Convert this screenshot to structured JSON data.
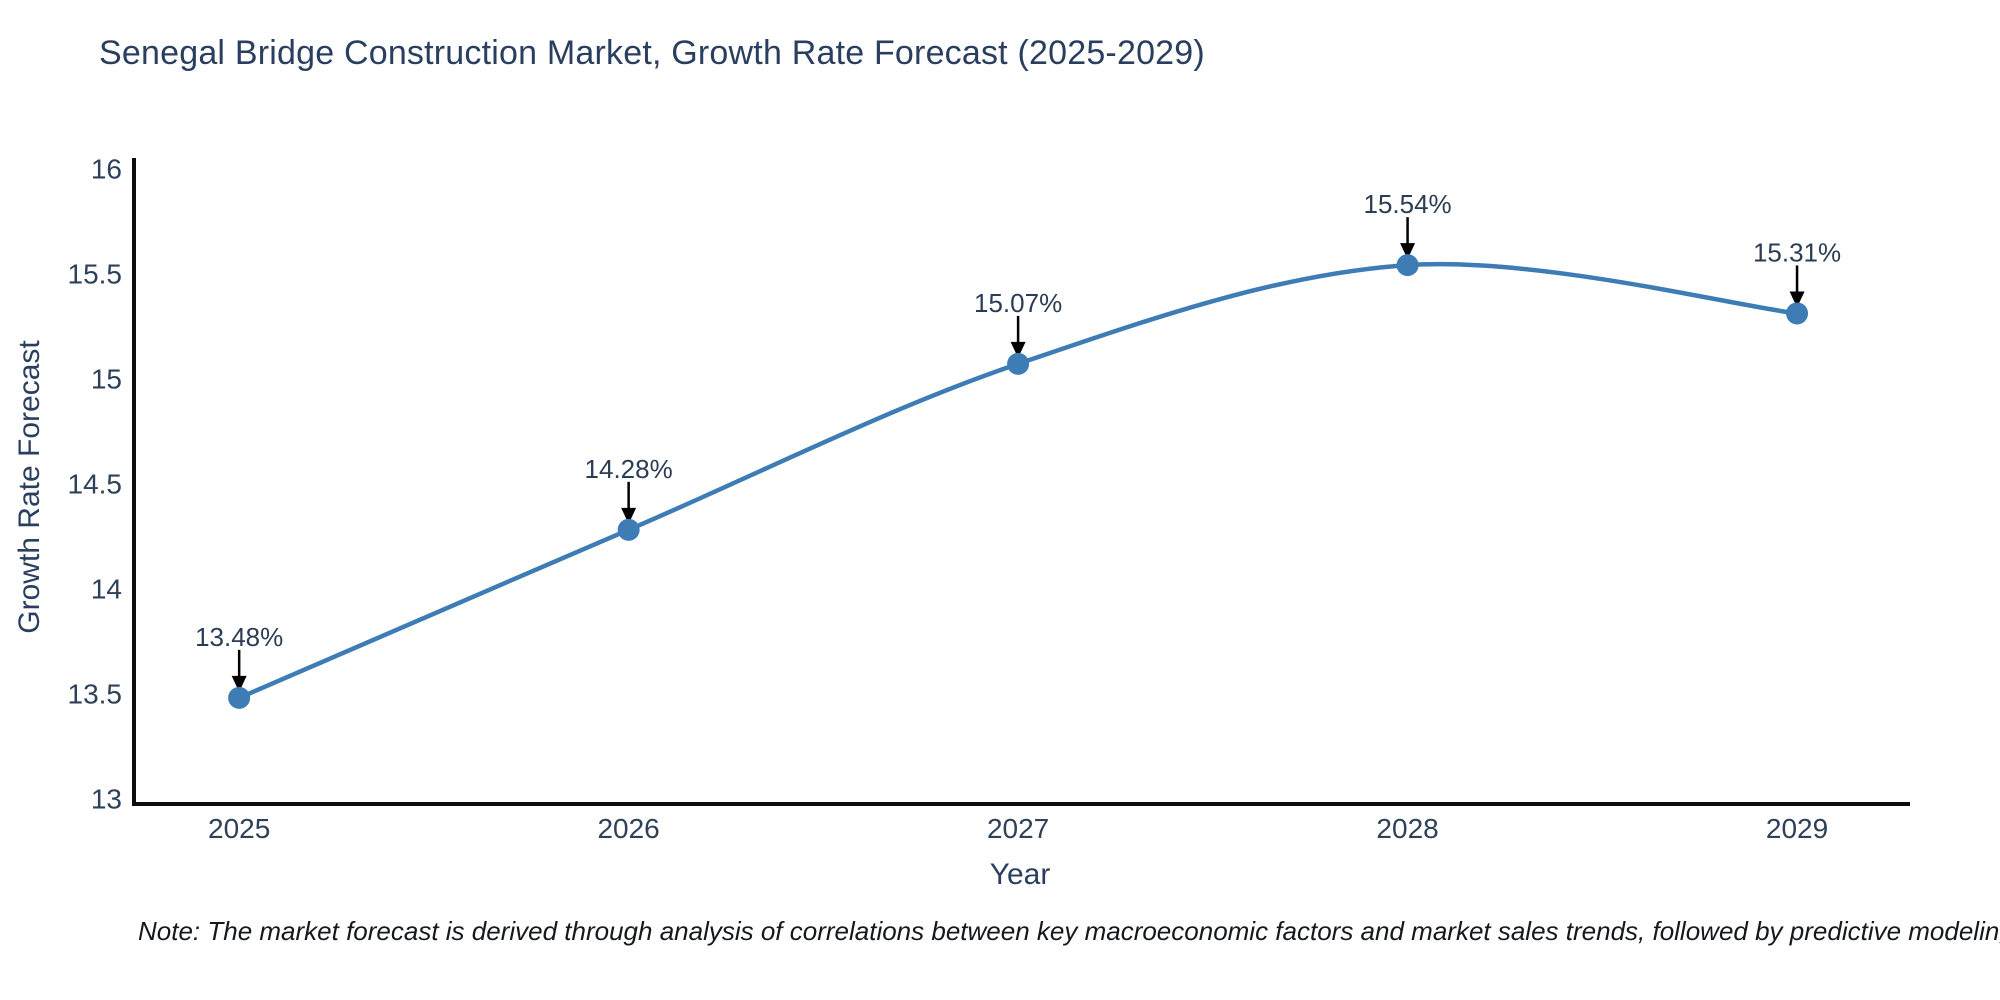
{
  "note": "Note: The market forecast is derived through analysis of correlations between key macroeconomic factors and market sales trends, followed by predictive modeling to project future sal",
  "chart_data": {
    "type": "line",
    "title": "Senegal Bridge Construction Market, Growth Rate Forecast (2025-2029)",
    "x": [
      2025,
      2026,
      2027,
      2028,
      2029
    ],
    "series": [
      {
        "name": "Growth Rate Forecast",
        "values": [
          13.48,
          14.28,
          15.07,
          15.54,
          15.31
        ]
      }
    ],
    "point_labels": [
      "13.48%",
      "14.28%",
      "15.07%",
      "15.54%",
      "15.31%"
    ],
    "xlabel": "Year",
    "ylabel": "Growth Rate Forecast",
    "xlim": [
      2024.73,
      2029.29
    ],
    "ylim": [
      12.97,
      16.05
    ],
    "xticks": [
      2025,
      2026,
      2027,
      2028,
      2029
    ],
    "xtick_labels": [
      "2025",
      "2026",
      "2027",
      "2028",
      "2029"
    ],
    "yticks": [
      13,
      13.5,
      14,
      14.5,
      15,
      15.5,
      16
    ],
    "ytick_labels": [
      "13",
      "13.5",
      "14",
      "14.5",
      "15",
      "15.5",
      "16"
    ],
    "grid": false,
    "legend": false,
    "line_shape": "spline",
    "line_color": "#3e7cb6",
    "marker_color": "#3e7cb6",
    "axis_color": "#0d0d0d",
    "annotation_arrow_color": "#000000"
  }
}
